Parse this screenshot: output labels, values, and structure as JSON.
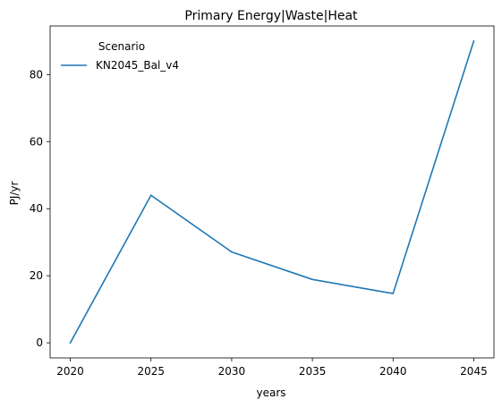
{
  "chart_data": {
    "type": "line",
    "title": "Primary Energy|Waste|Heat",
    "xlabel": "years",
    "ylabel": "PJ/yr",
    "x": [
      2020,
      2025,
      2030,
      2035,
      2040,
      2045
    ],
    "xticks": [
      2020,
      2025,
      2030,
      2035,
      2040,
      2045
    ],
    "yticks": [
      0,
      20,
      40,
      60,
      80
    ],
    "xlim": [
      2018.75,
      2046.25
    ],
    "ylim": [
      -4.5,
      94.5
    ],
    "grid": false,
    "legend": {
      "title": "Scenario",
      "position": "top-left"
    },
    "series": [
      {
        "name": "KN2045_Bal_v4",
        "color": "#1f77b4",
        "values": [
          0,
          44.0,
          27.1,
          18.9,
          14.7,
          90.0
        ]
      }
    ]
  }
}
